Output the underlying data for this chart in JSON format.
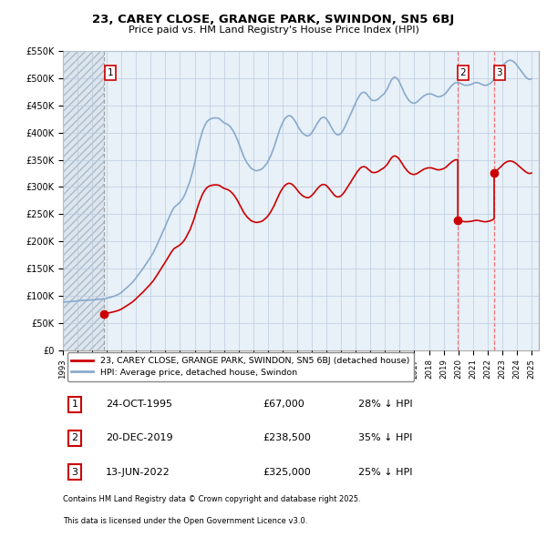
{
  "title": "23, CAREY CLOSE, GRANGE PARK, SWINDON, SN5 6BJ",
  "subtitle": "Price paid vs. HM Land Registry's House Price Index (HPI)",
  "ylim": [
    0,
    550000
  ],
  "yticks": [
    0,
    50000,
    100000,
    150000,
    200000,
    250000,
    300000,
    350000,
    400000,
    450000,
    500000,
    550000
  ],
  "ytick_labels": [
    "£0",
    "£50K",
    "£100K",
    "£150K",
    "£200K",
    "£250K",
    "£300K",
    "£350K",
    "£400K",
    "£450K",
    "£500K",
    "£550K"
  ],
  "legend_line1": "23, CAREY CLOSE, GRANGE PARK, SWINDON, SN5 6BJ (detached house)",
  "legend_line2": "HPI: Average price, detached house, Swindon",
  "footer1": "Contains HM Land Registry data © Crown copyright and database right 2025.",
  "footer2": "This data is licensed under the Open Government Licence v3.0.",
  "sale_color": "#cc0000",
  "hpi_color": "#88aacc",
  "vline1_color": "#aaaaaa",
  "vline23_color": "#ff8888",
  "background_color": "#ffffff",
  "chart_bg": "#e8f0f8",
  "grid_color": "#bbccdd",
  "hatch_color": "#d0d8e0",
  "sales": [
    {
      "date": 1995.82,
      "price": 67000,
      "label": "1"
    },
    {
      "date": 2019.97,
      "price": 238500,
      "label": "2"
    },
    {
      "date": 2022.45,
      "price": 325000,
      "label": "3"
    }
  ],
  "table_rows": [
    {
      "num": "1",
      "date": "24-OCT-1995",
      "price": "£67,000",
      "hpi": "28% ↓ HPI"
    },
    {
      "num": "2",
      "date": "20-DEC-2019",
      "price": "£238,500",
      "hpi": "35% ↓ HPI"
    },
    {
      "num": "3",
      "date": "13-JUN-2022",
      "price": "£325,000",
      "hpi": "25% ↓ HPI"
    }
  ],
  "hpi_years": [
    1993.0,
    1993.08,
    1993.17,
    1993.25,
    1993.33,
    1993.42,
    1993.5,
    1993.58,
    1993.67,
    1993.75,
    1993.83,
    1993.92,
    1994.0,
    1994.08,
    1994.17,
    1994.25,
    1994.33,
    1994.42,
    1994.5,
    1994.58,
    1994.67,
    1994.75,
    1994.83,
    1994.92,
    1995.0,
    1995.08,
    1995.17,
    1995.25,
    1995.33,
    1995.42,
    1995.5,
    1995.58,
    1995.67,
    1995.75,
    1995.83,
    1995.92,
    1996.0,
    1996.08,
    1996.17,
    1996.25,
    1996.33,
    1996.42,
    1996.5,
    1996.58,
    1996.67,
    1996.75,
    1996.83,
    1996.92,
    1997.0,
    1997.08,
    1997.17,
    1997.25,
    1997.33,
    1997.42,
    1997.5,
    1997.58,
    1997.67,
    1997.75,
    1997.83,
    1997.92,
    1998.0,
    1998.08,
    1998.17,
    1998.25,
    1998.33,
    1998.42,
    1998.5,
    1998.58,
    1998.67,
    1998.75,
    1998.83,
    1998.92,
    1999.0,
    1999.08,
    1999.17,
    1999.25,
    1999.33,
    1999.42,
    1999.5,
    1999.58,
    1999.67,
    1999.75,
    1999.83,
    1999.92,
    2000.0,
    2000.08,
    2000.17,
    2000.25,
    2000.33,
    2000.42,
    2000.5,
    2000.58,
    2000.67,
    2000.75,
    2000.83,
    2000.92,
    2001.0,
    2001.08,
    2001.17,
    2001.25,
    2001.33,
    2001.42,
    2001.5,
    2001.58,
    2001.67,
    2001.75,
    2001.83,
    2001.92,
    2002.0,
    2002.08,
    2002.17,
    2002.25,
    2002.33,
    2002.42,
    2002.5,
    2002.58,
    2002.67,
    2002.75,
    2002.83,
    2002.92,
    2003.0,
    2003.08,
    2003.17,
    2003.25,
    2003.33,
    2003.42,
    2003.5,
    2003.58,
    2003.67,
    2003.75,
    2003.83,
    2003.92,
    2004.0,
    2004.08,
    2004.17,
    2004.25,
    2004.33,
    2004.42,
    2004.5,
    2004.58,
    2004.67,
    2004.75,
    2004.83,
    2004.92,
    2005.0,
    2005.08,
    2005.17,
    2005.25,
    2005.33,
    2005.42,
    2005.5,
    2005.58,
    2005.67,
    2005.75,
    2005.83,
    2005.92,
    2006.0,
    2006.08,
    2006.17,
    2006.25,
    2006.33,
    2006.42,
    2006.5,
    2006.58,
    2006.67,
    2006.75,
    2006.83,
    2006.92,
    2007.0,
    2007.08,
    2007.17,
    2007.25,
    2007.33,
    2007.42,
    2007.5,
    2007.58,
    2007.67,
    2007.75,
    2007.83,
    2007.92,
    2008.0,
    2008.08,
    2008.17,
    2008.25,
    2008.33,
    2008.42,
    2008.5,
    2008.58,
    2008.67,
    2008.75,
    2008.83,
    2008.92,
    2009.0,
    2009.08,
    2009.17,
    2009.25,
    2009.33,
    2009.42,
    2009.5,
    2009.58,
    2009.67,
    2009.75,
    2009.83,
    2009.92,
    2010.0,
    2010.08,
    2010.17,
    2010.25,
    2010.33,
    2010.42,
    2010.5,
    2010.58,
    2010.67,
    2010.75,
    2010.83,
    2010.92,
    2011.0,
    2011.08,
    2011.17,
    2011.25,
    2011.33,
    2011.42,
    2011.5,
    2011.58,
    2011.67,
    2011.75,
    2011.83,
    2011.92,
    2012.0,
    2012.08,
    2012.17,
    2012.25,
    2012.33,
    2012.42,
    2012.5,
    2012.58,
    2012.67,
    2012.75,
    2012.83,
    2012.92,
    2013.0,
    2013.08,
    2013.17,
    2013.25,
    2013.33,
    2013.42,
    2013.5,
    2013.58,
    2013.67,
    2013.75,
    2013.83,
    2013.92,
    2014.0,
    2014.08,
    2014.17,
    2014.25,
    2014.33,
    2014.42,
    2014.5,
    2014.58,
    2014.67,
    2014.75,
    2014.83,
    2014.92,
    2015.0,
    2015.08,
    2015.17,
    2015.25,
    2015.33,
    2015.42,
    2015.5,
    2015.58,
    2015.67,
    2015.75,
    2015.83,
    2015.92,
    2016.0,
    2016.08,
    2016.17,
    2016.25,
    2016.33,
    2016.42,
    2016.5,
    2016.58,
    2016.67,
    2016.75,
    2016.83,
    2016.92,
    2017.0,
    2017.08,
    2017.17,
    2017.25,
    2017.33,
    2017.42,
    2017.5,
    2017.58,
    2017.67,
    2017.75,
    2017.83,
    2017.92,
    2018.0,
    2018.08,
    2018.17,
    2018.25,
    2018.33,
    2018.42,
    2018.5,
    2018.58,
    2018.67,
    2018.75,
    2018.83,
    2018.92,
    2019.0,
    2019.08,
    2019.17,
    2019.25,
    2019.33,
    2019.42,
    2019.5,
    2019.58,
    2019.67,
    2019.75,
    2019.83,
    2019.92,
    2020.0,
    2020.08,
    2020.17,
    2020.25,
    2020.33,
    2020.42,
    2020.5,
    2020.58,
    2020.67,
    2020.75,
    2020.83,
    2020.92,
    2021.0,
    2021.08,
    2021.17,
    2021.25,
    2021.33,
    2021.42,
    2021.5,
    2021.58,
    2021.67,
    2021.75,
    2021.83,
    2021.92,
    2022.0,
    2022.08,
    2022.17,
    2022.25,
    2022.33,
    2022.42,
    2022.5,
    2022.58,
    2022.67,
    2022.75,
    2022.83,
    2022.92,
    2023.0,
    2023.08,
    2023.17,
    2023.25,
    2023.33,
    2023.42,
    2023.5,
    2023.58,
    2023.67,
    2023.75,
    2023.83,
    2023.92,
    2024.0,
    2024.08,
    2024.17,
    2024.25,
    2024.33,
    2024.42,
    2024.5,
    2024.58,
    2024.67,
    2024.75,
    2024.83,
    2024.92,
    2025.0
  ],
  "hpi_vals": [
    88000,
    88200,
    88400,
    88600,
    88800,
    89000,
    89200,
    89400,
    89600,
    89800,
    90000,
    90200,
    90400,
    90600,
    90800,
    91000,
    91200,
    91400,
    91500,
    91600,
    91700,
    91800,
    91900,
    92000,
    92200,
    92400,
    92600,
    92800,
    93000,
    93200,
    93400,
    93600,
    93800,
    94000,
    94200,
    94800,
    95500,
    96000,
    96500,
    97000,
    97800,
    98500,
    99200,
    100000,
    101000,
    102000,
    103000,
    104500,
    106000,
    108000,
    110000,
    112000,
    114000,
    116000,
    118000,
    120000,
    122000,
    124500,
    127000,
    130000,
    133000,
    136000,
    139000,
    142000,
    145000,
    148000,
    151000,
    154500,
    158000,
    161000,
    164500,
    168000,
    171500,
    175000,
    179000,
    183500,
    188000,
    193000,
    198000,
    203000,
    208000,
    213000,
    218000,
    223000,
    228000,
    233500,
    239000,
    244000,
    249000,
    254000,
    258000,
    262000,
    264000,
    266000,
    268000,
    270000,
    272000,
    275000,
    278000,
    282000,
    286000,
    292000,
    298000,
    304000,
    310000,
    318000,
    326000,
    335000,
    344000,
    355000,
    366000,
    375000,
    384000,
    392000,
    400000,
    406000,
    412000,
    416000,
    420000,
    422000,
    424000,
    425000,
    426000,
    426500,
    427000,
    427000,
    427000,
    426500,
    426000,
    424000,
    422000,
    420000,
    418000,
    417000,
    416000,
    415000,
    413000,
    411000,
    408000,
    405000,
    401000,
    397000,
    392000,
    387000,
    381000,
    375000,
    369000,
    363000,
    357000,
    352000,
    348000,
    344000,
    341000,
    338000,
    335000,
    333000,
    332000,
    331000,
    330000,
    330000,
    330500,
    331000,
    332000,
    333000,
    335000,
    337500,
    340000,
    343000,
    347000,
    351000,
    356000,
    361000,
    367000,
    373000,
    380000,
    387000,
    394000,
    401000,
    407000,
    413000,
    418000,
    422000,
    426000,
    428000,
    430000,
    431000,
    431000,
    430000,
    428000,
    425000,
    422000,
    418000,
    414000,
    410000,
    406000,
    403000,
    400000,
    398000,
    396000,
    395000,
    394000,
    394000,
    395000,
    397000,
    400000,
    403000,
    407000,
    411000,
    415000,
    419000,
    422000,
    425000,
    427000,
    428000,
    428000,
    427000,
    425000,
    422000,
    418000,
    414000,
    410000,
    406000,
    402000,
    399000,
    397000,
    396000,
    396000,
    397000,
    399000,
    402000,
    406000,
    410000,
    415000,
    420000,
    425000,
    430000,
    435000,
    440000,
    445000,
    450000,
    455000,
    460000,
    464000,
    468000,
    471000,
    473000,
    474000,
    474000,
    473000,
    471000,
    468000,
    465000,
    462000,
    460000,
    459000,
    459000,
    459000,
    460000,
    461000,
    463000,
    465000,
    467000,
    469000,
    471000,
    474000,
    477000,
    481000,
    486000,
    491000,
    496000,
    499000,
    501000,
    502000,
    501000,
    499000,
    496000,
    492000,
    487000,
    482000,
    477000,
    472000,
    468000,
    464000,
    461000,
    458000,
    456000,
    455000,
    454000,
    454000,
    455000,
    456000,
    458000,
    460000,
    462000,
    464000,
    466000,
    468000,
    469000,
    470000,
    471000,
    471000,
    471000,
    471000,
    470000,
    469000,
    468000,
    467000,
    466000,
    466000,
    466000,
    467000,
    468000,
    469000,
    471000,
    473000,
    476000,
    479000,
    482000,
    485000,
    487000,
    489000,
    491000,
    492000,
    492000,
    492000,
    491000,
    490000,
    489000,
    488000,
    487000,
    487000,
    487000,
    487000,
    488000,
    488000,
    489000,
    490000,
    491000,
    492000,
    492000,
    492000,
    491000,
    490000,
    489000,
    488000,
    487000,
    487000,
    487000,
    488000,
    489000,
    490000,
    492000,
    494000,
    497000,
    500000,
    504000,
    508000,
    511000,
    514000,
    517000,
    521000,
    524000,
    527000,
    529000,
    531000,
    532000,
    533000,
    533000,
    532000,
    531000,
    529000,
    527000,
    524000,
    521000,
    518000,
    515000,
    512000,
    509000,
    506000,
    503000,
    501000,
    499000,
    498000,
    498000,
    499000
  ]
}
